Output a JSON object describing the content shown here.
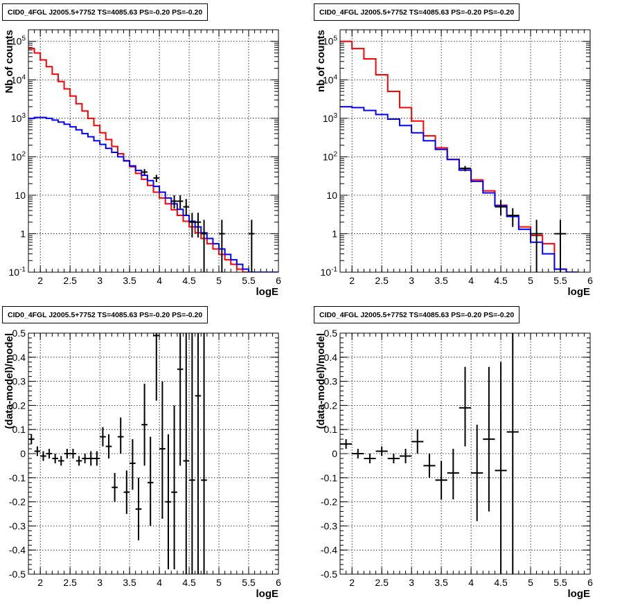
{
  "chart_data": [
    {
      "type": "line",
      "title": "CID0_4FGL J2005.5+7752 TS=4085.63 PS=-0.20 PS=-0.20",
      "xlabel": "logE",
      "ylabel": "Nb of counts",
      "xlim": [
        1.8,
        6.0
      ],
      "ylim": [
        0.1,
        200000
      ],
      "yscale": "log",
      "grid": true,
      "xticks": [
        "2",
        "2.5",
        "3",
        "3.5",
        "4",
        "4.5",
        "5",
        "5.5",
        "6"
      ],
      "yticks": [
        "10^-1",
        "1",
        "10",
        "10^2",
        "10^3",
        "10^4",
        "10^5"
      ],
      "bin_edges": [
        1.8,
        1.9,
        2.0,
        2.1,
        2.2,
        2.3,
        2.4,
        2.5,
        2.6,
        2.7,
        2.8,
        2.9,
        3.0,
        3.1,
        3.2,
        3.3,
        3.4,
        3.5,
        3.6,
        3.7,
        3.8,
        3.9,
        4.0,
        4.1,
        4.2,
        4.3,
        4.4,
        4.5,
        4.6,
        4.7,
        4.8,
        4.9,
        5.0,
        5.1,
        5.2,
        5.3,
        5.4,
        5.5,
        5.6,
        5.7,
        5.8,
        5.9,
        6.0
      ],
      "series": [
        {
          "color": "#ff0000",
          "values": [
            65000,
            50000,
            33000,
            22000,
            14000,
            9000,
            5800,
            3800,
            2400,
            1550,
            1000,
            650,
            420,
            280,
            185,
            120,
            80,
            55,
            37,
            26,
            18,
            12,
            8.5,
            6,
            4.2,
            3,
            2.1,
            1.5,
            1.05,
            0.75,
            0.55,
            0.4,
            0.29,
            0.21,
            0.16,
            0.12,
            0.1,
            0.1,
            0.1,
            0.1,
            0.1,
            0.1
          ]
        },
        {
          "color": "#0000ff",
          "values": [
            1000,
            1050,
            1050,
            1000,
            900,
            800,
            700,
            600,
            500,
            400,
            330,
            260,
            210,
            165,
            130,
            100,
            78,
            58,
            44,
            33,
            24,
            17,
            12,
            8.5,
            6,
            4.3,
            3,
            2.1,
            1.5,
            1.05,
            0.75,
            0.55,
            0.4,
            0.29,
            0.21,
            0.16,
            0.12,
            0.1,
            0.1,
            0.1,
            0.1,
            0.1
          ]
        }
      ],
      "points": [
        {
          "x": 3.75,
          "y": 40,
          "ylo": 33,
          "yhi": 48,
          "dx": 0.05
        },
        {
          "x": 3.95,
          "y": 28,
          "ylo": 22,
          "yhi": 34,
          "dx": 0.05
        },
        {
          "x": 4.25,
          "y": 7,
          "ylo": 4.5,
          "yhi": 10,
          "dx": 0.05
        },
        {
          "x": 4.35,
          "y": 7,
          "ylo": 4.5,
          "yhi": 10,
          "dx": 0.05
        },
        {
          "x": 4.45,
          "y": 5,
          "ylo": 3,
          "yhi": 8,
          "dx": 0.05
        },
        {
          "x": 4.55,
          "y": 2,
          "ylo": 0.8,
          "yhi": 3.5,
          "dx": 0.05
        },
        {
          "x": 4.65,
          "y": 2,
          "ylo": 0.8,
          "yhi": 3.5,
          "dx": 0.05
        },
        {
          "x": 4.75,
          "y": 1,
          "ylo": 0.1,
          "yhi": 2.3,
          "dx": 0.05
        },
        {
          "x": 5.05,
          "y": 1,
          "ylo": 0.1,
          "yhi": 2.3,
          "dx": 0.05
        },
        {
          "x": 5.55,
          "y": 1,
          "ylo": 0.1,
          "yhi": 2.3,
          "dx": 0.05
        }
      ]
    },
    {
      "type": "line",
      "title": "CID0_4FGL J2005.5+7752 TS=4085.63 PS=-0.20 PS=-0.20",
      "xlabel": "logE",
      "ylabel": "nb of counts",
      "xlim": [
        1.8,
        6.0
      ],
      "ylim": [
        0.1,
        200000
      ],
      "yscale": "log",
      "grid": true,
      "xticks": [
        "2",
        "2.5",
        "3",
        "3.5",
        "4",
        "4.5",
        "5",
        "5.5",
        "6"
      ],
      "yticks": [
        "10^-1",
        "1",
        "10",
        "10^2",
        "10^3",
        "10^4",
        "10^5"
      ],
      "bin_edges": [
        1.8,
        2.0,
        2.2,
        2.4,
        2.6,
        2.8,
        3.0,
        3.2,
        3.4,
        3.6,
        3.8,
        4.0,
        4.2,
        4.4,
        4.6,
        4.8,
        5.0,
        5.2,
        5.4,
        5.6,
        5.8,
        6.0
      ],
      "series": [
        {
          "color": "#ff0000",
          "values": [
            100000,
            65000,
            35000,
            13500,
            5000,
            1900,
            850,
            350,
            170,
            85,
            45,
            25,
            13,
            5.5,
            3,
            1.5,
            0.9,
            0.55,
            0.12,
            0.1
          ]
        },
        {
          "color": "#0000ff",
          "values": [
            2000,
            1900,
            1600,
            1250,
            950,
            650,
            420,
            260,
            155,
            85,
            45,
            23,
            11.5,
            5.3,
            2.8,
            1.3,
            0.6,
            0.3,
            0.12,
            0.1
          ]
        }
      ],
      "points": [
        {
          "x": 3.9,
          "y": 50,
          "ylo": 42,
          "yhi": 58,
          "dx": 0.1
        },
        {
          "x": 4.5,
          "y": 5,
          "ylo": 3,
          "yhi": 7.5,
          "dx": 0.1
        },
        {
          "x": 4.7,
          "y": 3,
          "ylo": 1.5,
          "yhi": 4.6,
          "dx": 0.1
        },
        {
          "x": 5.1,
          "y": 1,
          "ylo": 0.1,
          "yhi": 2.3,
          "dx": 0.1
        },
        {
          "x": 5.5,
          "y": 1,
          "ylo": 0.1,
          "yhi": 2.3,
          "dx": 0.1
        }
      ]
    },
    {
      "type": "scatter",
      "title": "CID0_4FGL J2005.5+7752 TS=4085.63 PS=-0.20 PS=-0.20",
      "xlabel": "logE",
      "ylabel": "(data-model)/model",
      "xlim": [
        1.8,
        6.0
      ],
      "ylim": [
        -0.5,
        0.5
      ],
      "yscale": "linear",
      "grid": true,
      "xticks": [
        "2",
        "2.5",
        "3",
        "3.5",
        "4",
        "4.5",
        "5",
        "5.5",
        "6"
      ],
      "yticks": [
        "-0.5",
        "-0.4",
        "-0.3",
        "-0.2",
        "-0.1",
        "0",
        "0.1",
        "0.2",
        "0.3",
        "0.4",
        "0.5"
      ],
      "points": [
        {
          "x": 1.85,
          "y": 0.06,
          "ylo": 0.04,
          "yhi": 0.08,
          "dx": 0.05
        },
        {
          "x": 1.95,
          "y": 0.01,
          "ylo": -0.01,
          "yhi": 0.03,
          "dx": 0.05
        },
        {
          "x": 2.05,
          "y": -0.01,
          "ylo": -0.03,
          "yhi": 0.01,
          "dx": 0.05
        },
        {
          "x": 2.15,
          "y": 0.0,
          "ylo": -0.02,
          "yhi": 0.02,
          "dx": 0.05
        },
        {
          "x": 2.25,
          "y": -0.02,
          "ylo": -0.04,
          "yhi": 0.0,
          "dx": 0.05
        },
        {
          "x": 2.35,
          "y": -0.03,
          "ylo": -0.05,
          "yhi": -0.01,
          "dx": 0.05
        },
        {
          "x": 2.45,
          "y": 0.0,
          "ylo": -0.02,
          "yhi": 0.02,
          "dx": 0.05
        },
        {
          "x": 2.55,
          "y": 0.0,
          "ylo": -0.02,
          "yhi": 0.02,
          "dx": 0.05
        },
        {
          "x": 2.65,
          "y": -0.03,
          "ylo": -0.05,
          "yhi": -0.01,
          "dx": 0.05
        },
        {
          "x": 2.75,
          "y": -0.02,
          "ylo": -0.04,
          "yhi": 0.0,
          "dx": 0.05
        },
        {
          "x": 2.85,
          "y": -0.02,
          "ylo": -0.05,
          "yhi": 0.01,
          "dx": 0.05
        },
        {
          "x": 2.95,
          "y": -0.02,
          "ylo": -0.05,
          "yhi": 0.01,
          "dx": 0.05
        },
        {
          "x": 3.05,
          "y": 0.07,
          "ylo": 0.03,
          "yhi": 0.11,
          "dx": 0.05
        },
        {
          "x": 3.15,
          "y": 0.03,
          "ylo": -0.02,
          "yhi": 0.08,
          "dx": 0.05
        },
        {
          "x": 3.25,
          "y": -0.14,
          "ylo": -0.2,
          "yhi": -0.08,
          "dx": 0.05
        },
        {
          "x": 3.35,
          "y": 0.07,
          "ylo": 0.0,
          "yhi": 0.15,
          "dx": 0.05
        },
        {
          "x": 3.45,
          "y": -0.16,
          "ylo": -0.25,
          "yhi": -0.07,
          "dx": 0.05
        },
        {
          "x": 3.55,
          "y": -0.04,
          "ylo": -0.15,
          "yhi": 0.06,
          "dx": 0.05
        },
        {
          "x": 3.65,
          "y": -0.23,
          "ylo": -0.36,
          "yhi": -0.1,
          "dx": 0.05
        },
        {
          "x": 3.75,
          "y": 0.12,
          "ylo": -0.05,
          "yhi": 0.29,
          "dx": 0.05
        },
        {
          "x": 3.85,
          "y": -0.12,
          "ylo": -0.3,
          "yhi": 0.07,
          "dx": 0.05
        },
        {
          "x": 3.95,
          "y": 0.49,
          "ylo": 0.22,
          "yhi": 0.5,
          "dx": 0.05
        },
        {
          "x": 4.05,
          "y": 0.02,
          "ylo": -0.27,
          "yhi": 0.3,
          "dx": 0.05
        },
        {
          "x": 4.15,
          "y": -0.2,
          "ylo": -0.48,
          "yhi": 0.08,
          "dx": 0.05
        },
        {
          "x": 4.25,
          "y": -0.16,
          "ylo": -0.48,
          "yhi": 0.2,
          "dx": 0.05
        },
        {
          "x": 4.35,
          "y": 0.35,
          "ylo": -0.05,
          "yhi": 0.5,
          "dx": 0.05
        },
        {
          "x": 4.45,
          "y": -0.03,
          "ylo": -0.5,
          "yhi": 0.5,
          "dx": 0.05
        },
        {
          "x": 4.55,
          "y": -0.11,
          "ylo": -0.5,
          "yhi": 0.5,
          "dx": 0.05
        },
        {
          "x": 4.65,
          "y": 0.24,
          "ylo": -0.5,
          "yhi": 0.5,
          "dx": 0.05
        },
        {
          "x": 4.75,
          "y": -0.11,
          "ylo": -0.5,
          "yhi": 0.5,
          "dx": 0.05
        }
      ]
    },
    {
      "type": "scatter",
      "title": "CID0_4FGL J2005.5+7752 TS=4085.63 PS=-0.20 PS=-0.20",
      "xlabel": "logE",
      "ylabel": "(data-model)/model",
      "xlim": [
        1.8,
        6.0
      ],
      "ylim": [
        -0.5,
        0.5
      ],
      "yscale": "linear",
      "grid": true,
      "xticks": [
        "2",
        "2.5",
        "3",
        "3.5",
        "4",
        "4.5",
        "5",
        "5.5",
        "6"
      ],
      "yticks": [
        "-0.5",
        "-0.4",
        "-0.3",
        "-0.2",
        "-0.1",
        "0",
        "0.1",
        "0.2",
        "0.3",
        "0.4",
        "0.5"
      ],
      "points": [
        {
          "x": 1.9,
          "y": 0.04,
          "ylo": 0.02,
          "yhi": 0.06,
          "dx": 0.1
        },
        {
          "x": 2.1,
          "y": 0.0,
          "ylo": -0.02,
          "yhi": 0.02,
          "dx": 0.1
        },
        {
          "x": 2.3,
          "y": -0.02,
          "ylo": -0.04,
          "yhi": 0.0,
          "dx": 0.1
        },
        {
          "x": 2.5,
          "y": 0.01,
          "ylo": -0.01,
          "yhi": 0.03,
          "dx": 0.1
        },
        {
          "x": 2.7,
          "y": -0.02,
          "ylo": -0.04,
          "yhi": 0.0,
          "dx": 0.1
        },
        {
          "x": 2.9,
          "y": -0.01,
          "ylo": -0.04,
          "yhi": 0.02,
          "dx": 0.1
        },
        {
          "x": 3.1,
          "y": 0.05,
          "ylo": 0.0,
          "yhi": 0.1,
          "dx": 0.1
        },
        {
          "x": 3.3,
          "y": -0.05,
          "ylo": -0.1,
          "yhi": 0.0,
          "dx": 0.1
        },
        {
          "x": 3.5,
          "y": -0.11,
          "ylo": -0.19,
          "yhi": -0.03,
          "dx": 0.1
        },
        {
          "x": 3.7,
          "y": -0.08,
          "ylo": -0.19,
          "yhi": 0.02,
          "dx": 0.1
        },
        {
          "x": 3.9,
          "y": 0.19,
          "ylo": 0.03,
          "yhi": 0.36,
          "dx": 0.1
        },
        {
          "x": 4.1,
          "y": -0.08,
          "ylo": -0.28,
          "yhi": 0.12,
          "dx": 0.1
        },
        {
          "x": 4.3,
          "y": 0.06,
          "ylo": -0.24,
          "yhi": 0.36,
          "dx": 0.1
        },
        {
          "x": 4.5,
          "y": -0.07,
          "ylo": -0.5,
          "yhi": 0.38,
          "dx": 0.1
        },
        {
          "x": 4.7,
          "y": 0.09,
          "ylo": -0.5,
          "yhi": 0.5,
          "dx": 0.1
        }
      ]
    }
  ]
}
